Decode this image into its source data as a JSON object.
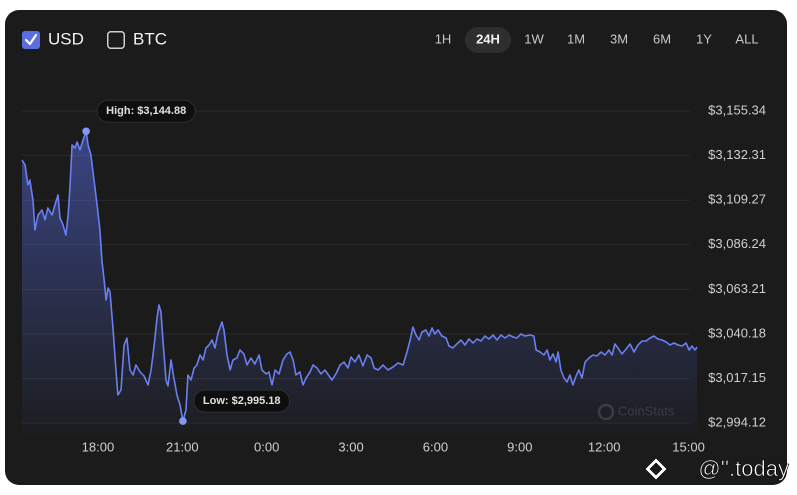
{
  "header": {
    "currencies": [
      {
        "label": "USD",
        "checked": true
      },
      {
        "label": "BTC",
        "checked": false
      }
    ],
    "ranges": [
      "1H",
      "24H",
      "1W",
      "1M",
      "3M",
      "6M",
      "1Y",
      "ALL"
    ],
    "selected_range": "24H"
  },
  "chart_data": {
    "type": "line",
    "x": [
      15.3,
      15.41,
      15.51,
      15.58,
      15.69,
      15.76,
      15.87,
      16.01,
      16.12,
      16.22,
      16.37,
      16.47,
      16.58,
      16.65,
      16.76,
      16.86,
      16.94,
      17.01,
      17.08,
      17.18,
      17.26,
      17.36,
      17.47,
      17.58,
      17.65,
      17.75,
      17.86,
      17.97,
      18.07,
      18.14,
      18.22,
      18.29,
      18.36,
      18.43,
      18.54,
      18.64,
      18.71,
      18.82,
      18.93,
      19.03,
      19.14,
      19.25,
      19.35,
      19.5,
      19.64,
      19.78,
      19.89,
      20.0,
      20.1,
      20.17,
      20.24,
      20.31,
      20.42,
      20.49,
      20.6,
      20.7,
      20.81,
      20.92,
      21.02,
      21.13,
      21.2,
      21.31,
      21.42,
      21.52,
      21.63,
      21.74,
      21.84,
      21.95,
      22.06,
      22.16,
      22.27,
      22.41,
      22.48,
      22.59,
      22.7,
      22.8,
      22.94,
      23.05,
      23.19,
      23.3,
      23.44,
      23.58,
      23.73,
      23.83,
      23.98,
      24.08,
      24.19,
      24.3,
      24.44,
      24.58,
      24.72,
      24.83,
      24.94,
      25.04,
      25.18,
      25.29,
      25.4,
      25.54,
      25.65,
      25.79,
      25.93,
      26.07,
      26.22,
      26.32,
      26.46,
      26.61,
      26.75,
      26.89,
      27.0,
      27.14,
      27.28,
      27.42,
      27.57,
      27.71,
      27.82,
      27.96,
      28.14,
      28.31,
      28.49,
      28.67,
      28.85,
      28.99,
      29.1,
      29.2,
      29.31,
      29.42,
      29.52,
      29.66,
      29.77,
      29.88,
      29.98,
      30.09,
      30.23,
      30.38,
      30.48,
      30.62,
      30.76,
      30.91,
      31.05,
      31.19,
      31.34,
      31.48,
      31.62,
      31.76,
      31.9,
      32.05,
      32.19,
      32.33,
      32.47,
      32.62,
      32.76,
      32.9,
      33.04,
      33.18,
      33.36,
      33.5,
      33.58,
      33.72,
      33.86,
      33.97,
      34.07,
      34.18,
      34.29,
      34.36,
      34.46,
      34.57,
      34.68,
      34.78,
      34.89,
      35.0,
      35.1,
      35.21,
      35.32,
      35.46,
      35.6,
      35.74,
      35.89,
      36.03,
      36.17,
      36.28,
      36.38,
      36.49,
      36.63,
      36.78,
      36.92,
      37.06,
      37.2,
      37.35,
      37.49,
      37.63,
      37.77,
      37.91,
      38.06,
      38.2,
      38.34,
      38.48,
      38.63,
      38.77,
      38.91,
      39.02,
      39.12,
      39.23,
      39.3
    ],
    "series": [
      {
        "color": "#6a7ff0",
        "values": [
          3130.04,
          3127.46,
          3117.13,
          3119.71,
          3109.38,
          3093.88,
          3101.63,
          3104.21,
          3099.05,
          3105.25,
          3101.63,
          3106.8,
          3111.96,
          3100.08,
          3096.47,
          3091.3,
          3101.63,
          3117.13,
          3137.79,
          3136.24,
          3139.33,
          3135.2,
          3140.37,
          3144.88,
          3137.79,
          3132.62,
          3119.71,
          3106.8,
          3093.88,
          3078.39,
          3068.06,
          3057.73,
          3063.93,
          3061.86,
          3042.23,
          3021.57,
          3008.66,
          3011.24,
          3034.49,
          3038.1,
          3021.57,
          3018.99,
          3024.16,
          3020.54,
          3018.47,
          3013.83,
          3021.57,
          3034.49,
          3048.43,
          3055.15,
          3051.53,
          3037.07,
          3016.41,
          3013.31,
          3026.74,
          3017.44,
          3008.66,
          3003.5,
          2995.18,
          3000.91,
          3018.99,
          3016.41,
          3022.61,
          3024.16,
          3029.32,
          3026.74,
          3032.94,
          3034.49,
          3037.07,
          3032.94,
          3040.68,
          3046.36,
          3042.23,
          3029.32,
          3021.57,
          3026.74,
          3027.77,
          3031.9,
          3029.84,
          3024.16,
          3027.77,
          3024.67,
          3029.32,
          3021.57,
          3019.51,
          3020.54,
          3013.83,
          3021.57,
          3019.51,
          3026.74,
          3029.84,
          3030.87,
          3026.74,
          3018.99,
          3020.54,
          3013.83,
          3017.44,
          3020.54,
          3024.16,
          3022.61,
          3019.51,
          3021.57,
          3018.47,
          3016.41,
          3019.51,
          3024.16,
          3025.7,
          3022.61,
          3028.29,
          3025.7,
          3029.32,
          3023.64,
          3029.32,
          3027.77,
          3022.61,
          3021.57,
          3024.16,
          3021.57,
          3023.12,
          3025.19,
          3024.16,
          3030.87,
          3037.07,
          3043.78,
          3039.65,
          3037.07,
          3041.2,
          3042.23,
          3039.13,
          3043.26,
          3040.17,
          3042.23,
          3039.13,
          3038.1,
          3033.97,
          3032.94,
          3035.0,
          3037.07,
          3034.49,
          3037.58,
          3035.52,
          3037.58,
          3036.55,
          3039.13,
          3037.58,
          3039.65,
          3037.07,
          3039.65,
          3038.1,
          3039.65,
          3038.62,
          3038.1,
          3040.17,
          3039.13,
          3039.65,
          3039.13,
          3031.9,
          3030.87,
          3029.32,
          3031.9,
          3026.74,
          3029.84,
          3025.7,
          3030.87,
          3021.57,
          3017.44,
          3015.37,
          3018.99,
          3013.83,
          3018.47,
          3021.57,
          3017.44,
          3025.7,
          3027.77,
          3029.32,
          3028.81,
          3030.87,
          3029.32,
          3031.9,
          3029.32,
          3035.0,
          3032.94,
          3029.84,
          3032.42,
          3035.0,
          3030.87,
          3034.49,
          3036.55,
          3036.55,
          3038.1,
          3039.13,
          3037.58,
          3037.07,
          3036.04,
          3034.49,
          3035.52,
          3034.49,
          3033.97,
          3035.52,
          3031.9,
          3033.97,
          3031.9,
          3033.45
        ]
      }
    ],
    "area": true,
    "xlim": [
      15.3,
      39.3
    ],
    "xticks": [
      {
        "value": 18,
        "label": "18:00"
      },
      {
        "value": 21,
        "label": "21:00"
      },
      {
        "value": 24,
        "label": "0:00"
      },
      {
        "value": 27,
        "label": "3:00"
      },
      {
        "value": 30,
        "label": "6:00"
      },
      {
        "value": 33,
        "label": "9:00"
      },
      {
        "value": 36,
        "label": "12:00"
      },
      {
        "value": 39,
        "label": "15:00"
      }
    ],
    "ylim": [
      2988,
      3155.34
    ],
    "yticks": [
      {
        "value": 3155.34,
        "label": "$3,155.34"
      },
      {
        "value": 3132.31,
        "label": "$3,132.31"
      },
      {
        "value": 3109.27,
        "label": "$3,109.27"
      },
      {
        "value": 3086.24,
        "label": "$3,086.24"
      },
      {
        "value": 3063.21,
        "label": "$3,063.21"
      },
      {
        "value": 3040.18,
        "label": "$3,040.18"
      },
      {
        "value": 3017.15,
        "label": "$3,017.15"
      },
      {
        "value": 2994.12,
        "label": "$2,994.12"
      }
    ],
    "grid": true,
    "annotations": [
      {
        "text": "High: $3,144.88",
        "x": 17.58,
        "y": 3144.88
      },
      {
        "text": "Low: $2,995.18",
        "x": 21.02,
        "y": 2995.18
      }
    ]
  },
  "watermarks": {
    "chart": "CoinStats",
    "page": "@''.today"
  }
}
